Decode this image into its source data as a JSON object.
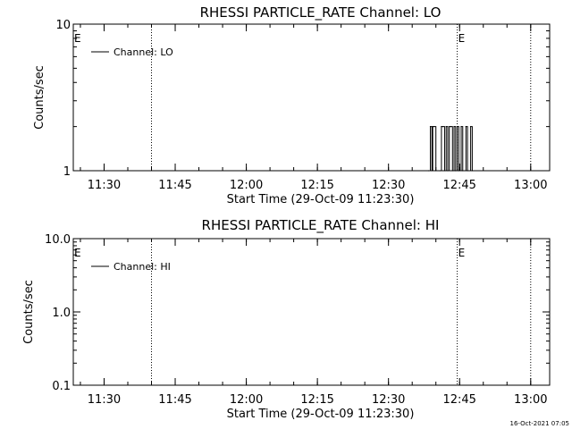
{
  "footer": {
    "timestamp": "16-Oct-2021 07:05"
  },
  "chart_data": [
    {
      "type": "line",
      "title": "RHESSI PARTICLE_RATE Channel: LO",
      "xlabel": "Start Time (29-Oct-09 11:23:30)",
      "ylabel": "Counts/sec",
      "yscale": "log",
      "xlim": [
        "11:23:30",
        "13:04:00"
      ],
      "ylim": [
        1,
        10
      ],
      "x_ticks": [
        "11:30",
        "11:45",
        "12:00",
        "12:15",
        "12:30",
        "12:45",
        "13:00"
      ],
      "y_ticks": [
        {
          "value": 1,
          "label": "1"
        },
        {
          "value": 10,
          "label": "10"
        }
      ],
      "vertical_lines": [
        {
          "x": "11:40:00",
          "marker": ""
        },
        {
          "x": "12:44:30",
          "marker": "E"
        },
        {
          "x": "13:00:00",
          "marker": ""
        }
      ],
      "edge_marker": "E",
      "legend": {
        "placement": "top-left",
        "entries": [
          "Channel: LO"
        ]
      },
      "series": [
        {
          "name": "Channel: LO",
          "values": [
            [
              "12:38:30",
              1
            ],
            [
              "12:38:50",
              2
            ],
            [
              "12:39:10",
              1
            ],
            [
              "12:39:20",
              2
            ],
            [
              "12:39:40",
              2
            ],
            [
              "12:40:00",
              1
            ],
            [
              "12:40:50",
              1
            ],
            [
              "12:41:10",
              2
            ],
            [
              "12:41:30",
              2
            ],
            [
              "12:41:50",
              1
            ],
            [
              "12:42:10",
              2
            ],
            [
              "12:42:30",
              1
            ],
            [
              "12:42:50",
              2
            ],
            [
              "12:43:10",
              2
            ],
            [
              "12:43:30",
              1
            ],
            [
              "12:43:50",
              2
            ],
            [
              "12:44:10",
              1
            ],
            [
              "12:44:30",
              2
            ],
            [
              "12:44:50",
              1
            ],
            [
              "12:45:20",
              2
            ],
            [
              "12:45:40",
              1
            ],
            [
              "12:46:20",
              2
            ],
            [
              "12:46:40",
              1
            ],
            [
              "12:47:20",
              2
            ],
            [
              "12:47:40",
              1
            ]
          ]
        }
      ]
    },
    {
      "type": "line",
      "title": "RHESSI PARTICLE_RATE Channel: HI",
      "xlabel": "Start Time (29-Oct-09 11:23:30)",
      "ylabel": "Counts/sec",
      "yscale": "log",
      "xlim": [
        "11:23:30",
        "13:04:00"
      ],
      "ylim": [
        0.1,
        10
      ],
      "x_ticks": [
        "11:30",
        "11:45",
        "12:00",
        "12:15",
        "12:30",
        "12:45",
        "13:00"
      ],
      "y_ticks": [
        {
          "value": 0.1,
          "label": "0.1"
        },
        {
          "value": 1,
          "label": "1.0"
        },
        {
          "value": 10,
          "label": "10.0"
        }
      ],
      "vertical_lines": [
        {
          "x": "11:40:00",
          "marker": ""
        },
        {
          "x": "12:44:30",
          "marker": "E"
        },
        {
          "x": "13:00:00",
          "marker": ""
        }
      ],
      "edge_marker": "E",
      "legend": {
        "placement": "top-left",
        "entries": [
          "Channel: HI"
        ]
      },
      "series": [
        {
          "name": "Channel: HI",
          "values": []
        }
      ]
    }
  ]
}
